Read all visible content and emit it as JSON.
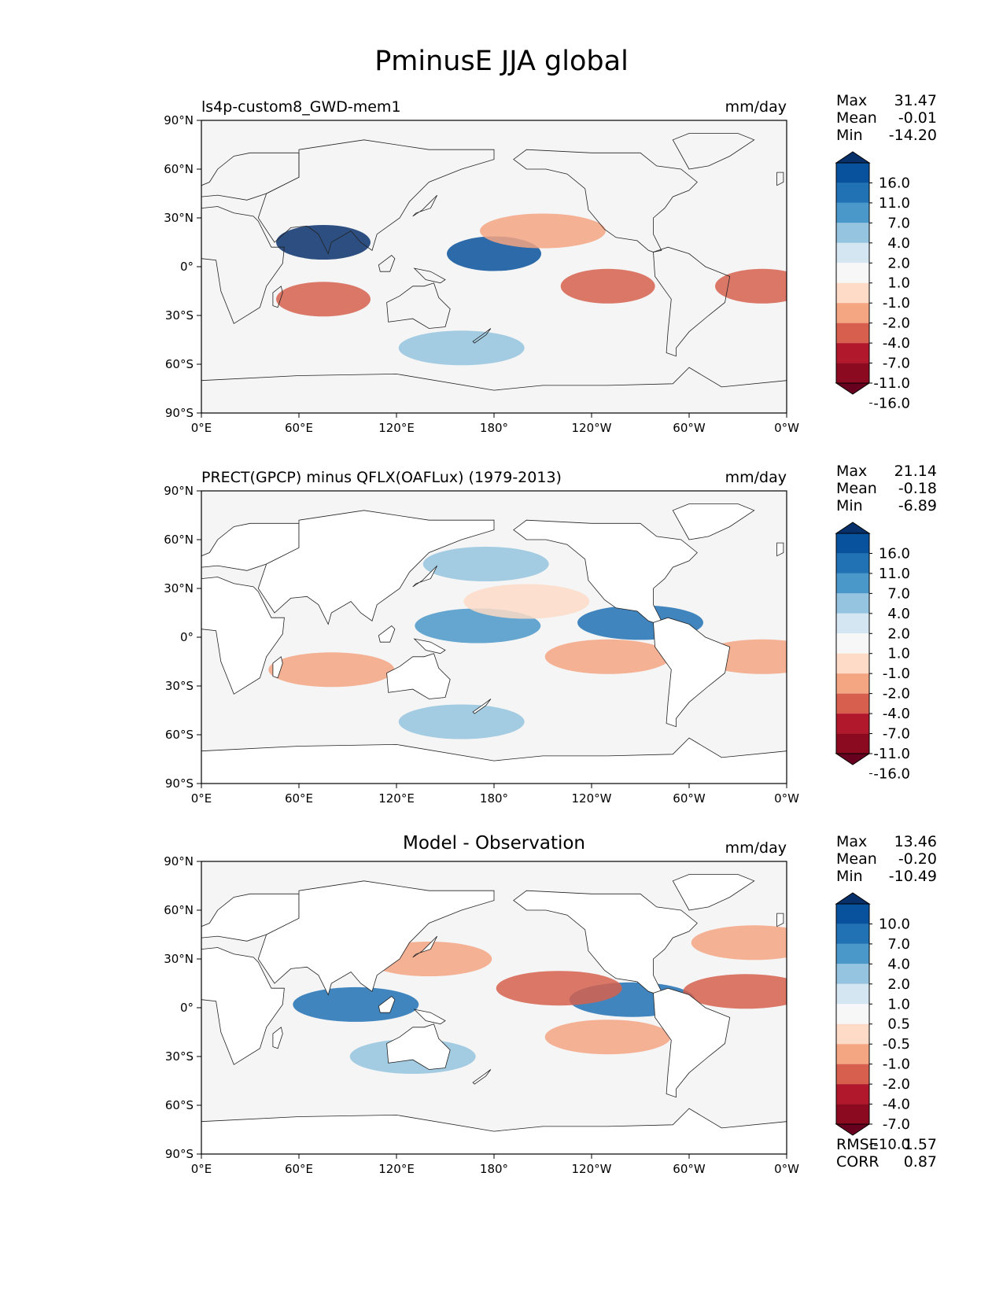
{
  "figure": {
    "title": "PminusE JJA global"
  },
  "axes": {
    "lat_ticks": [
      "90°N",
      "60°N",
      "30°N",
      "0°",
      "30°S",
      "60°S",
      "90°S"
    ],
    "lon_ticks": [
      "0°E",
      "60°E",
      "120°E",
      "180°",
      "120°W",
      "60°W",
      "0°W"
    ]
  },
  "chart_data": [
    {
      "type": "heatmap",
      "title_left": "ls4p-custom8_GWD-mem1",
      "title_center": "",
      "units": "mm/day",
      "stats": {
        "max": "31.47",
        "mean": "-0.01",
        "min": "-14.20"
      },
      "colorbar_levels": [
        "16.0",
        "11.0",
        "7.0",
        "4.0",
        "2.0",
        "1.0",
        "-1.0",
        "-2.0",
        "-4.0",
        "-7.0",
        "-11.0",
        "-16.0"
      ],
      "colorbar_colors": [
        "#08306b",
        "#08519c",
        "#2171b5",
        "#4a98c9",
        "#94c4df",
        "#d4e6f1",
        "#f7f7f7",
        "#fddbc7",
        "#f4a582",
        "#d6604d",
        "#b2182b",
        "#8b0a1f",
        "#67001f"
      ],
      "features": [
        {
          "lon": 180,
          "lat": 8,
          "value": 11
        },
        {
          "lon": 75,
          "lat": 15,
          "value": 16
        },
        {
          "lon": 210,
          "lat": 22,
          "value": -4
        },
        {
          "lon": 75,
          "lat": -20,
          "value": -7
        },
        {
          "lon": 250,
          "lat": -12,
          "value": -7
        },
        {
          "lon": 345,
          "lat": -12,
          "value": -7
        },
        {
          "lon": 160,
          "lat": -50,
          "value": 2
        }
      ]
    },
    {
      "type": "heatmap",
      "title_left": "PRECT(GPCP) minus QFLX(OAFLux) (1979-2013)",
      "title_center": "",
      "units": "mm/day",
      "stats": {
        "max": "21.14",
        "mean": "-0.18",
        "min": "-6.89"
      },
      "colorbar_levels": [
        "16.0",
        "11.0",
        "7.0",
        "4.0",
        "2.0",
        "1.0",
        "-1.0",
        "-2.0",
        "-4.0",
        "-7.0",
        "-11.0",
        "-16.0"
      ],
      "colorbar_colors": [
        "#08306b",
        "#08519c",
        "#2171b5",
        "#4a98c9",
        "#94c4df",
        "#d4e6f1",
        "#f7f7f7",
        "#fddbc7",
        "#f4a582",
        "#d6604d",
        "#b2182b",
        "#8b0a1f",
        "#67001f"
      ],
      "features": [
        {
          "lon": 170,
          "lat": 7,
          "value": 4
        },
        {
          "lon": 270,
          "lat": 9,
          "value": 7
        },
        {
          "lon": 175,
          "lat": 45,
          "value": 2
        },
        {
          "lon": 200,
          "lat": 22,
          "value": -2
        },
        {
          "lon": 80,
          "lat": -20,
          "value": -4
        },
        {
          "lon": 250,
          "lat": -12,
          "value": -4
        },
        {
          "lon": 345,
          "lat": -12,
          "value": -4
        },
        {
          "lon": 160,
          "lat": -52,
          "value": 2
        }
      ]
    },
    {
      "type": "heatmap",
      "title_left": "",
      "title_center": "Model - Observation",
      "units": "mm/day",
      "stats": {
        "max": "13.46",
        "mean": "-0.20",
        "min": "-10.49"
      },
      "metrics": {
        "rmse": "1.57",
        "corr": "0.87"
      },
      "colorbar_levels": [
        "10.0",
        "7.0",
        "4.0",
        "2.0",
        "1.0",
        "0.5",
        "-0.5",
        "-1.0",
        "-2.0",
        "-4.0",
        "-7.0",
        "-10.0"
      ],
      "colorbar_colors": [
        "#08306b",
        "#08519c",
        "#2171b5",
        "#4a98c9",
        "#94c4df",
        "#d4e6f1",
        "#f7f7f7",
        "#fddbc7",
        "#f4a582",
        "#d6604d",
        "#b2182b",
        "#8b0a1f",
        "#67001f"
      ],
      "features": [
        {
          "lon": 95,
          "lat": 2,
          "value": 4
        },
        {
          "lon": 265,
          "lat": 5,
          "value": 4
        },
        {
          "lon": 220,
          "lat": 12,
          "value": -4
        },
        {
          "lon": 335,
          "lat": 10,
          "value": -4
        },
        {
          "lon": 140,
          "lat": 30,
          "value": -2
        },
        {
          "lon": 340,
          "lat": 40,
          "value": -2
        },
        {
          "lon": 250,
          "lat": -18,
          "value": -2
        },
        {
          "lon": 130,
          "lat": -30,
          "value": 1
        }
      ]
    }
  ],
  "panel_labels": {
    "max": "Max",
    "mean": "Mean",
    "min": "Min",
    "rmse": "RMSE",
    "corr": "CORR"
  }
}
